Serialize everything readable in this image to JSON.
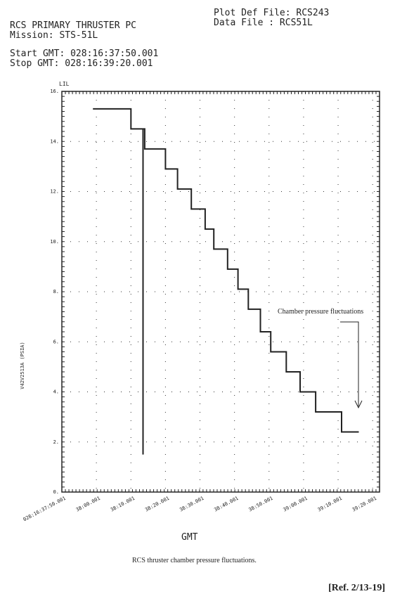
{
  "chart_data": {
    "type": "line",
    "header": {
      "title": "RCS PRIMARY THRUSTER PC",
      "mission": "Mission: STS-51L",
      "start": "Start GMT: 028:16:37:50.001",
      "stop": "Stop GMT: 028:16:39:20.001",
      "plot_def": "Plot Def File: RCS243",
      "data_file": "Data File    : RCS51L"
    },
    "top_label": "LIL",
    "y_label": "V42V2513A (PSIA)",
    "x_label": "GMT",
    "annotation": "Chamber pressure fluctuations",
    "caption": "RCS thruster chamber pressure fluctuations.",
    "reference": "[Ref. 2/13-19]",
    "x": [
      9,
      20,
      20,
      23.5,
      23.5,
      23.5,
      24,
      24,
      30,
      30,
      33.5,
      33.5,
      37.5,
      37.5,
      41.5,
      41.5,
      44,
      44,
      48,
      48,
      51,
      51,
      54,
      54,
      57.5,
      57.5,
      60.5,
      60.5,
      65,
      65,
      69,
      69,
      73.5,
      73.5,
      81,
      81,
      86
    ],
    "values": [
      15.3,
      15.3,
      14.5,
      14.5,
      1.5,
      14.5,
      14.5,
      13.7,
      13.7,
      12.9,
      12.9,
      12.1,
      12.1,
      11.3,
      11.3,
      10.5,
      10.5,
      9.7,
      9.7,
      8.9,
      8.9,
      8.1,
      8.1,
      7.3,
      7.3,
      6.4,
      6.4,
      5.6,
      5.6,
      4.8,
      4.8,
      4.0,
      4.0,
      3.2,
      3.2,
      2.4,
      2.4
    ],
    "color": "#222222",
    "xlim": [
      0,
      92
    ],
    "xticks": [
      {
        "value": 0,
        "label": "028:16:37:50.001"
      },
      {
        "value": 10,
        "label": "38:00.001"
      },
      {
        "value": 20,
        "label": "38:10.001"
      },
      {
        "value": 30,
        "label": "38:20.001"
      },
      {
        "value": 40,
        "label": "38:30.001"
      },
      {
        "value": 50,
        "label": "38:40.001"
      },
      {
        "value": 60,
        "label": "38:50.001"
      },
      {
        "value": 70,
        "label": "39:00.001"
      },
      {
        "value": 80,
        "label": "39:10.001"
      },
      {
        "value": 90,
        "label": "39:20.001"
      }
    ],
    "ylim": [
      0,
      16
    ],
    "yticks": [
      {
        "value": 0,
        "label": "0."
      },
      {
        "value": 2,
        "label": "2."
      },
      {
        "value": 4,
        "label": "4."
      },
      {
        "value": 6,
        "label": "6."
      },
      {
        "value": 8,
        "label": "8."
      },
      {
        "value": 10,
        "label": "10."
      },
      {
        "value": 12,
        "label": "12."
      },
      {
        "value": 14,
        "label": "14."
      },
      {
        "value": 16,
        "label": "16."
      }
    ],
    "grid": true
  }
}
